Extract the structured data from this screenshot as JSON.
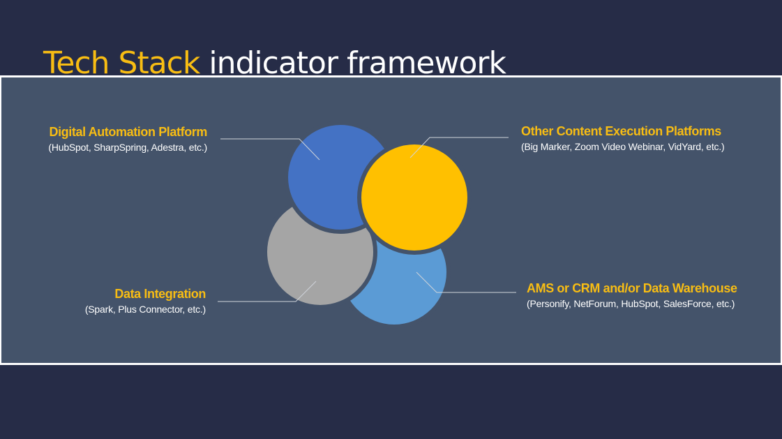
{
  "title": {
    "accent": "Tech Stack",
    "rest": "indicator framework"
  },
  "colors": {
    "background": "#262c47",
    "panel": "#44536a",
    "accent": "#f8bd13",
    "circle_digital_automation": "#4472c4",
    "circle_content_execution": "#ffc000",
    "circle_data_integration": "#a5a5a5",
    "circle_ams_crm": "#5b9bd5"
  },
  "items": [
    {
      "heading": "Digital Automation Platform",
      "detail": "(HubSpot, SharpSpring, Adestra, etc.)"
    },
    {
      "heading": "Other Content Execution Platforms",
      "detail": "(Big Marker, Zoom Video Webinar, VidYard, etc.)"
    },
    {
      "heading": "Data Integration",
      "detail": "(Spark, Plus Connector, etc.)"
    },
    {
      "heading": "AMS or CRM and/or Data Warehouse",
      "detail": "(Personify, NetForum, HubSpot, SalesForce, etc.)"
    }
  ]
}
